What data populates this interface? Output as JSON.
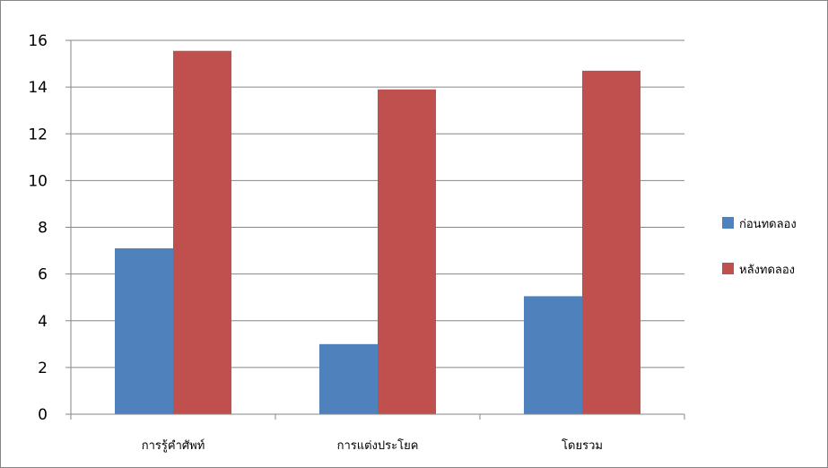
{
  "chart_data": {
    "type": "bar",
    "title": "",
    "xlabel": "",
    "ylabel": "",
    "categories": [
      "การรู้คำศัพท์",
      "การแต่งประโยค",
      "โดยรวม"
    ],
    "series": [
      {
        "name": "ก่อนทดลอง",
        "color": "#4F81BD",
        "values": [
          7.1,
          3.0,
          5.05
        ]
      },
      {
        "name": "หลังทดลอง",
        "color": "#C0504D",
        "values": [
          15.55,
          13.9,
          14.7
        ]
      }
    ],
    "ylim": [
      0,
      16
    ],
    "yticks": [
      0,
      2,
      4,
      6,
      8,
      10,
      12,
      14,
      16
    ],
    "grid": true,
    "legend_position": "right"
  }
}
